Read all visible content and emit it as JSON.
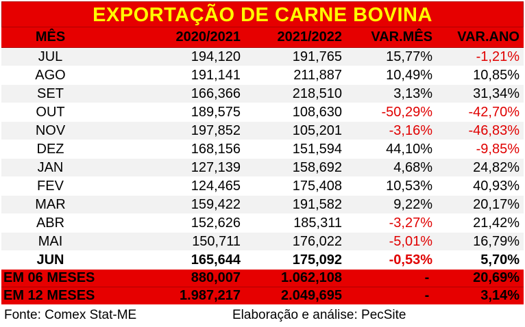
{
  "chart_data": {
    "type": "table",
    "title": "EXPORTAÇÃO DE CARNE BOVINA",
    "columns": [
      "MÊS",
      "2020/2021",
      "2021/2022",
      "VAR.MÊS",
      "VAR.ANO"
    ],
    "rows": [
      {
        "month": "JUL",
        "y2021": "194,120",
        "y2122": "191,765",
        "var_mes": "15,77%",
        "var_ano": "-1,21%"
      },
      {
        "month": "AGO",
        "y2021": "191,141",
        "y2122": "211,887",
        "var_mes": "10,49%",
        "var_ano": "10,85%"
      },
      {
        "month": "SET",
        "y2021": "166,366",
        "y2122": "218,510",
        "var_mes": "3,13%",
        "var_ano": "31,34%"
      },
      {
        "month": "OUT",
        "y2021": "189,575",
        "y2122": "108,630",
        "var_mes": "-50,29%",
        "var_ano": "-42,70%"
      },
      {
        "month": "NOV",
        "y2021": "197,852",
        "y2122": "105,201",
        "var_mes": "-3,16%",
        "var_ano": "-46,83%"
      },
      {
        "month": "DEZ",
        "y2021": "168,156",
        "y2122": "151,594",
        "var_mes": "44,10%",
        "var_ano": "-9,85%"
      },
      {
        "month": "JAN",
        "y2021": "127,139",
        "y2122": "158,692",
        "var_mes": "4,68%",
        "var_ano": "24,82%"
      },
      {
        "month": "FEV",
        "y2021": "124,465",
        "y2122": "175,408",
        "var_mes": "10,53%",
        "var_ano": "40,93%"
      },
      {
        "month": "MAR",
        "y2021": "159,422",
        "y2122": "191,582",
        "var_mes": "9,22%",
        "var_ano": "20,17%"
      },
      {
        "month": "ABR",
        "y2021": "152,626",
        "y2122": "185,311",
        "var_mes": "-3,27%",
        "var_ano": "21,42%"
      },
      {
        "month": "MAI",
        "y2021": "150,711",
        "y2122": "176,022",
        "var_mes": "-5,01%",
        "var_ano": "16,79%"
      },
      {
        "month": "JUN",
        "y2021": "165,644",
        "y2122": "175,092",
        "var_mes": "-0,53%",
        "var_ano": "5,70%"
      }
    ],
    "totals": [
      {
        "label": "EM 06 MESES",
        "y2021": "880,007",
        "y2122": "1.062,108",
        "var_mes": "-",
        "var_ano": "20,69%"
      },
      {
        "label": "EM 12 MESES",
        "y2021": "1.987,217",
        "y2122": "2.049,695",
        "var_mes": "-",
        "var_ano": "3,14%"
      }
    ]
  },
  "footer": {
    "source": "Fonte: Comex Stat-ME",
    "analysis": "Elaboração e análise: PecSite"
  },
  "colors": {
    "header_red": "#e60000",
    "title_text": "#ffff00",
    "negative": "#e00000",
    "row_band": "#f2f2f2"
  }
}
